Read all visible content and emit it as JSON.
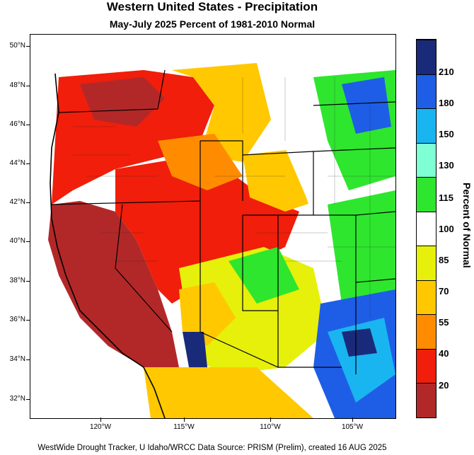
{
  "title": "Western United States - Precipitation",
  "subtitle": "May-July 2025  Percent of 1981-2010 Normal",
  "footer": "WestWide Drought Tracker, U Idaho/WRCC Data Source: PRISM (Prelim), created 16 AUG 2025",
  "lat_labels": [
    "50°N",
    "48°N",
    "46°N",
    "44°N",
    "42°N",
    "40°N",
    "38°N",
    "36°N",
    "34°N",
    "32°N"
  ],
  "lon_labels": [
    "120°W",
    "115°W",
    "110°W",
    "105°W"
  ],
  "colorbar": {
    "title": "Percent of Normal",
    "labels": [
      "210",
      "180",
      "150",
      "130",
      "115",
      "100",
      "85",
      "70",
      "55",
      "40",
      "20"
    ],
    "colors": [
      "#1a2a7a",
      "#1e5ee6",
      "#19b5f0",
      "#7fffd4",
      "#2ee62e",
      "#ffffff",
      "#e6f00a",
      "#ffc800",
      "#ff8c00",
      "#f01e0a",
      "#b22828"
    ]
  }
}
